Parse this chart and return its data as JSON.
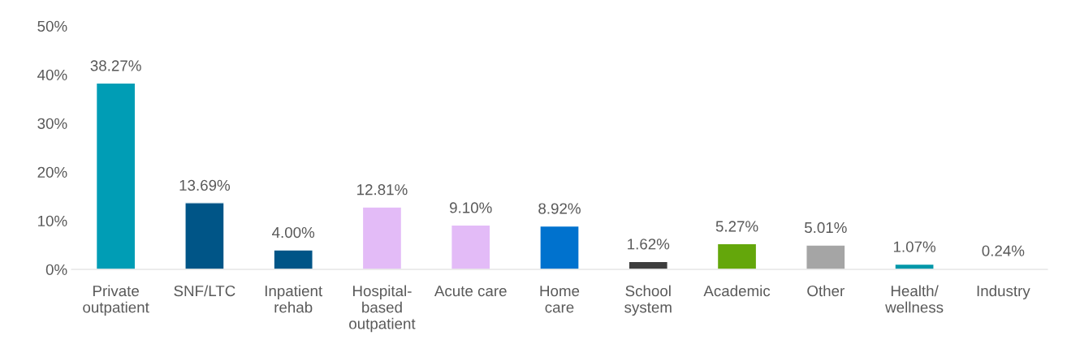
{
  "chart_data": {
    "type": "bar",
    "categories": [
      "Private\noutpatient",
      "SNF/LTC",
      "Inpatient\nrehab",
      "Hospital-\nbased\noutpatient",
      "Acute care",
      "Home\ncare",
      "School\nsystem",
      "Academic",
      "Other",
      "Health/\nwellness",
      "Industry"
    ],
    "values": [
      38.27,
      13.69,
      4.0,
      12.81,
      9.1,
      8.92,
      1.62,
      5.27,
      5.01,
      1.07,
      0.24
    ],
    "value_labels": [
      "38.27%",
      "13.69%",
      "4.00%",
      "12.81%",
      "9.10%",
      "8.92%",
      "1.62%",
      "5.27%",
      "5.01%",
      "1.07%",
      "0.24%"
    ],
    "colors": [
      "#009db5",
      "#005587",
      "#005587",
      "#e3bbf7",
      "#e3bbf7",
      "#0072ce",
      "#3d3d3d",
      "#64a70b",
      "#a5a5a5",
      "#0097a9",
      "#bfbfbf"
    ],
    "ylim": [
      0,
      50
    ],
    "yticks": [
      {
        "value": 0,
        "label": "0%"
      },
      {
        "value": 10,
        "label": "10%"
      },
      {
        "value": 20,
        "label": "20%"
      },
      {
        "value": 30,
        "label": "30%"
      },
      {
        "value": 40,
        "label": "40%"
      },
      {
        "value": 50,
        "label": "50%"
      }
    ],
    "grid": false,
    "legend": false
  }
}
